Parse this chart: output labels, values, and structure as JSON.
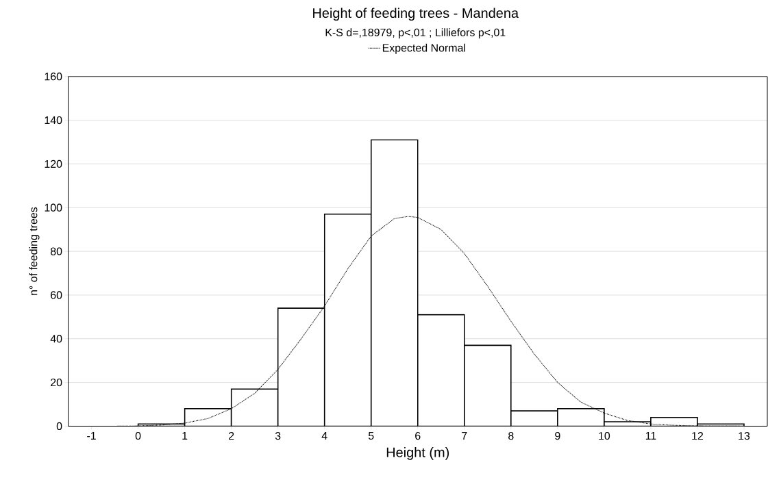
{
  "chart_data": {
    "type": "histogram",
    "title": "Height of feeding trees - Mandena",
    "subtitle": "K-S d=,18979, p<,01 ; Lilliefors p<,01",
    "xlabel": "Height (m)",
    "ylabel": "n° of feeding trees",
    "bins": [
      0,
      1,
      2,
      3,
      4,
      5,
      6,
      7,
      8,
      9,
      10,
      11,
      12,
      13
    ],
    "values": [
      1,
      8,
      17,
      54,
      97,
      131,
      51,
      37,
      7,
      8,
      2,
      4,
      1
    ],
    "color": "#ffffff",
    "series": [
      {
        "name": "Expected Normal",
        "type": "line",
        "color": "#000000",
        "line_style": "dotted",
        "x": [
          -1,
          -0.5,
          0,
          0.5,
          1,
          1.5,
          2,
          2.5,
          3,
          3.5,
          4,
          4.5,
          5,
          5.5,
          5.8,
          6,
          6.5,
          7,
          7.5,
          8,
          8.5,
          9,
          9.5,
          10,
          10.5,
          11,
          11.5,
          12,
          13
        ],
        "values": [
          0,
          0,
          0.1,
          0.5,
          1.4,
          3.5,
          8,
          15,
          26,
          40,
          55,
          72,
          87,
          95,
          96,
          95.5,
          90,
          79,
          64,
          48,
          33,
          20,
          11,
          6,
          2.6,
          1,
          0.4,
          0.1,
          0
        ]
      }
    ],
    "xlim": [
      -1.5,
      13.5
    ],
    "xticks": [
      -1,
      0,
      1,
      2,
      3,
      4,
      5,
      6,
      7,
      8,
      9,
      10,
      11,
      12,
      13
    ],
    "ylim": [
      0,
      160
    ],
    "yticks": [
      0,
      20,
      40,
      60,
      80,
      100,
      120,
      140,
      160
    ],
    "grid": "y",
    "legend": "top"
  }
}
